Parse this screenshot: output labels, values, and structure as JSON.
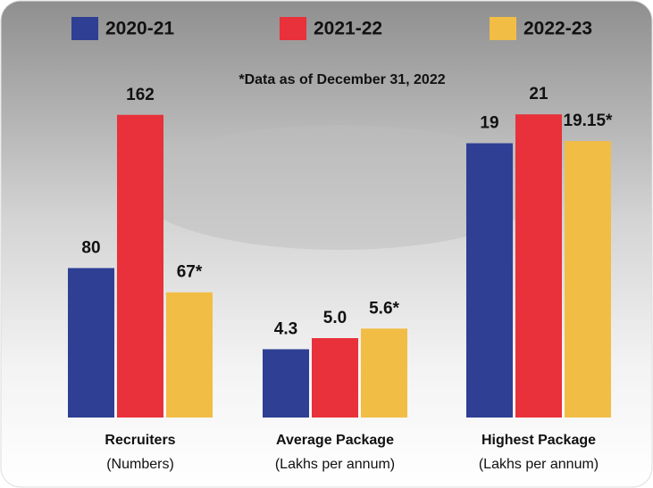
{
  "chart_data": [
    {
      "type": "bar",
      "title": "Recruiters",
      "subtitle": "(Numbers)",
      "categories": [
        "2020-21",
        "2021-22",
        "2022-23"
      ],
      "colors": [
        "#2e3f94",
        "#e8313a",
        "#f2bd45"
      ],
      "values": [
        80,
        162,
        67
      ],
      "value_labels": [
        "80",
        "162",
        "67*"
      ],
      "ylim": [
        0,
        170
      ],
      "note": "*Data as of December 31, 2022"
    },
    {
      "type": "bar",
      "title": "Average Package",
      "subtitle": "(Lakhs per annum)",
      "categories": [
        "2020-21",
        "2021-22",
        "2022-23"
      ],
      "colors": [
        "#2e3f94",
        "#e8313a",
        "#f2bd45"
      ],
      "values": [
        4.3,
        5.0,
        5.6
      ],
      "value_labels": [
        "4.3",
        "5.0",
        "5.6*"
      ],
      "ylim": [
        0,
        20
      ]
    },
    {
      "type": "bar",
      "title": "Highest Package",
      "subtitle": "(Lakhs per annum)",
      "categories": [
        "2020-21",
        "2021-22",
        "2022-23"
      ],
      "colors": [
        "#2e3f94",
        "#e8313a",
        "#f2bd45"
      ],
      "values": [
        19,
        21,
        19.15
      ],
      "value_labels": [
        "19",
        "21",
        "19.15*"
      ],
      "ylim": [
        0,
        22
      ]
    }
  ]
}
